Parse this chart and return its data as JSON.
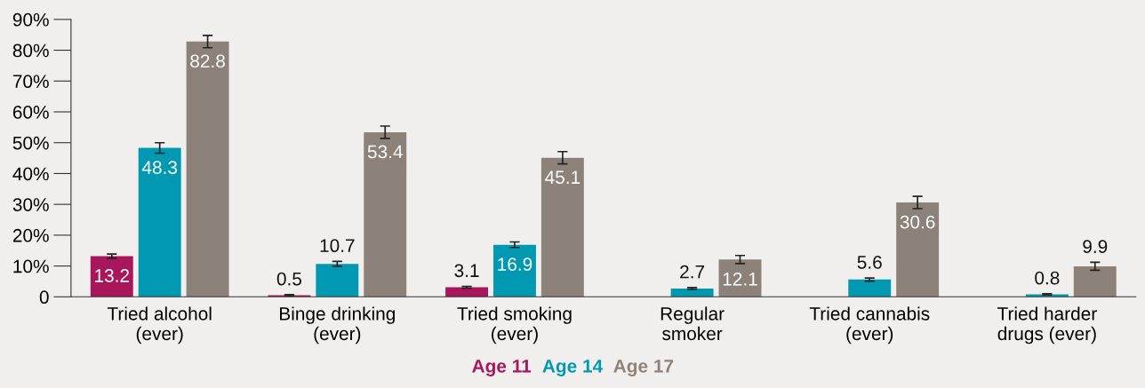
{
  "chart_data": {
    "type": "bar",
    "categories": [
      "Tried alcohol\n(ever)",
      "Binge drinking\n(ever)",
      "Tried smoking\n(ever)",
      "Regular\nsmoker",
      "Tried cannabis\n(ever)",
      "Tried harder\ndrugs (ever)"
    ],
    "series": [
      {
        "name": "Age 11",
        "color": "#a8175b",
        "values": [
          13.2,
          0.5,
          3.1,
          null,
          null,
          null
        ],
        "errors": [
          0.7,
          0.2,
          0.3,
          null,
          null,
          null
        ]
      },
      {
        "name": "Age 14",
        "color": "#0099b1",
        "values": [
          48.3,
          10.7,
          16.9,
          2.7,
          5.6,
          0.8
        ],
        "errors": [
          1.7,
          0.8,
          0.9,
          0.3,
          0.5,
          0.2
        ]
      },
      {
        "name": "Age 17",
        "color": "#8c8279",
        "values": [
          82.8,
          53.4,
          45.1,
          12.1,
          30.6,
          9.9
        ],
        "errors": [
          2.0,
          2.0,
          2.0,
          1.3,
          2.0,
          1.3
        ]
      }
    ],
    "ylim": [
      0,
      90
    ],
    "yticks": [
      0,
      {
        "value": 10,
        "label": "10%"
      },
      {
        "value": 20,
        "label": "20%"
      },
      {
        "value": 30,
        "label": "30%"
      },
      {
        "value": 40,
        "label": "40%"
      },
      {
        "value": 50,
        "label": "50%"
      },
      {
        "value": 60,
        "label": "60%"
      },
      {
        "value": 70,
        "label": "70%"
      },
      {
        "value": 80,
        "label": "80%"
      },
      {
        "value": 90,
        "label": "90%"
      }
    ],
    "data_labels": true,
    "grid": false,
    "legend": "bottom"
  }
}
